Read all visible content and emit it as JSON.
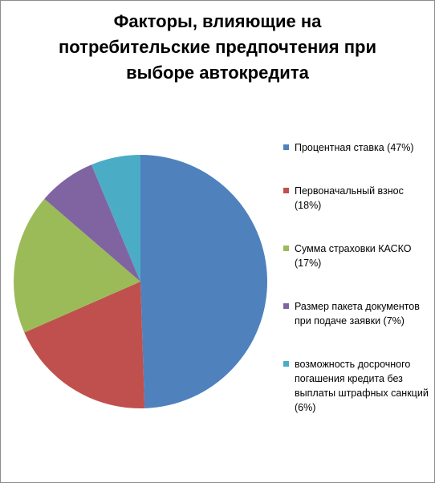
{
  "chart_data": {
    "type": "pie",
    "title_lines": [
      "Факторы, влияющие на",
      "потребительские предпочтения при",
      "выборе автокредита"
    ],
    "title": "Факторы, влияющие на потребительские предпочтения при выборе автокредита",
    "legend_position": "right",
    "slices": [
      {
        "label": "Процентная ставка (47%)",
        "value": 47,
        "color": "#4F81BD"
      },
      {
        "label": "Первоначальный взнос (18%)",
        "value": 18,
        "color": "#C0504D"
      },
      {
        "label": "Сумма страховки КАСКО (17%)",
        "value": 17,
        "color": "#9BBB59"
      },
      {
        "label": "Размер пакета документов при подаче заявки (7%)",
        "value": 7,
        "color": "#8064A2"
      },
      {
        "label": "возможность досрочного погашения кредита без выплаты штрафных санкций (6%)",
        "value": 6,
        "color": "#4BACC6"
      }
    ]
  }
}
